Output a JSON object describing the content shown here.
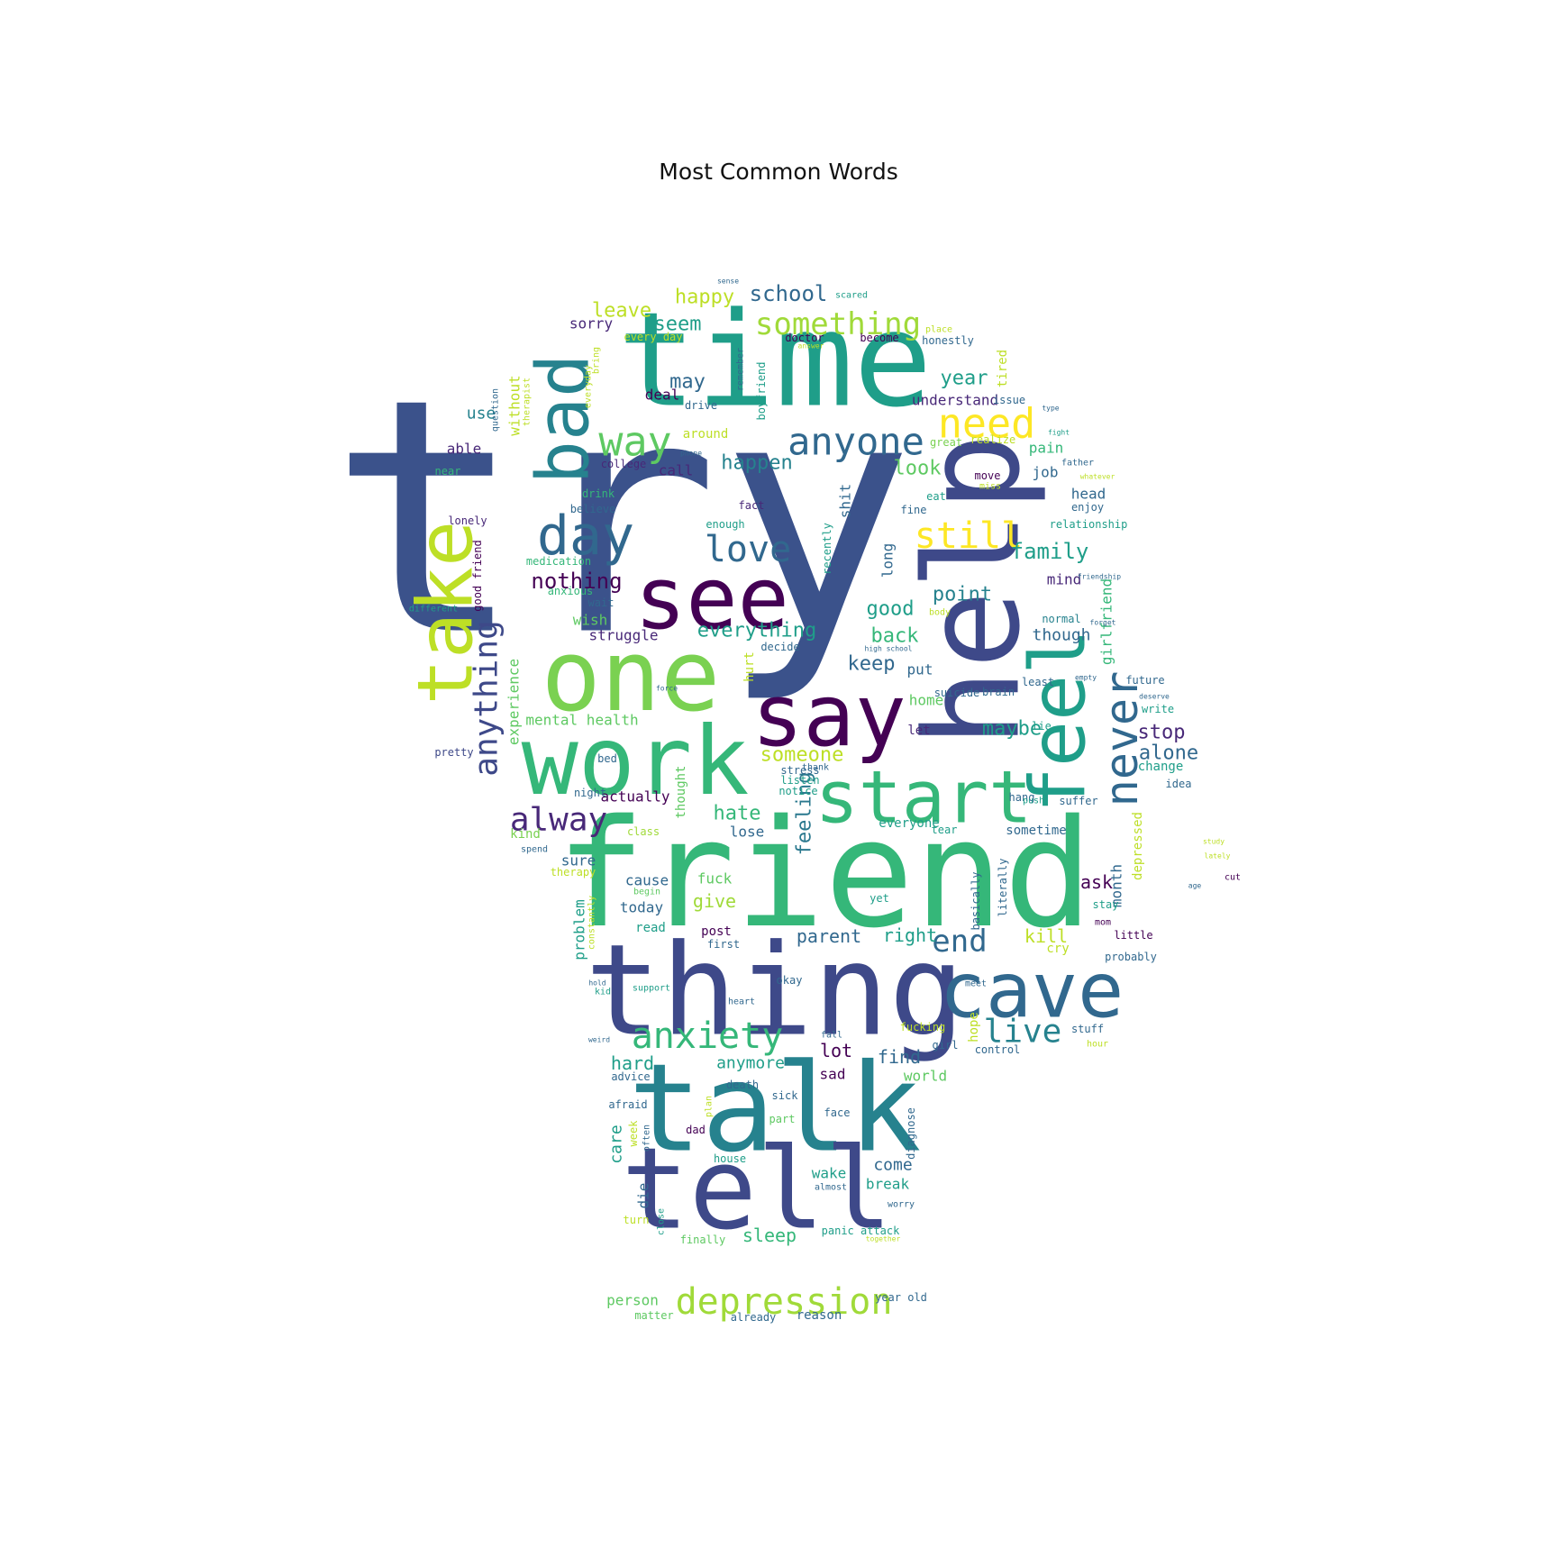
{
  "title": "Most Common Words",
  "palette": {
    "d1": "#3b528b",
    "d2": "#21918c",
    "d3": "#2a788e",
    "d4": "#440154",
    "d5": "#482878",
    "d6": "#5ec962",
    "d7": "#35b779",
    "d8": "#7ad151",
    "d9": "#bddf26",
    "d10": "#fde725",
    "d11": "#31688e",
    "d12": "#26828e",
    "d13": "#1f9e89",
    "d14": "#3e4989",
    "d15": "#a0da39",
    "d16": "#6ece58"
  },
  "words": [
    {
      "text": "try",
      "color": "d1"
    },
    {
      "text": "time",
      "color": "d13"
    },
    {
      "text": "friend",
      "color": "d7"
    },
    {
      "text": "help",
      "color": "d14"
    },
    {
      "text": "thing",
      "color": "d14"
    },
    {
      "text": "talk",
      "color": "d12"
    },
    {
      "text": "tell",
      "color": "d14"
    },
    {
      "text": "one",
      "color": "d8"
    },
    {
      "text": "work",
      "color": "d7"
    },
    {
      "text": "feel",
      "color": "d13"
    },
    {
      "text": "say",
      "color": "d4"
    },
    {
      "text": "see",
      "color": "d4"
    },
    {
      "text": "bad",
      "color": "d12"
    },
    {
      "text": "take",
      "color": "d9"
    },
    {
      "text": "start",
      "color": "d7"
    },
    {
      "text": "cave",
      "color": "d11"
    },
    {
      "text": "never",
      "color": "d11"
    },
    {
      "text": "day",
      "color": "d11"
    },
    {
      "text": "anyone",
      "color": "d11"
    },
    {
      "text": "way",
      "color": "d6"
    },
    {
      "text": "need",
      "color": "d10"
    },
    {
      "text": "anxiety",
      "color": "d7"
    },
    {
      "text": "depression",
      "color": "d15"
    },
    {
      "text": "anything",
      "color": "d14"
    },
    {
      "text": "love",
      "color": "d11"
    },
    {
      "text": "still",
      "color": "d10"
    },
    {
      "text": "alway",
      "color": "d5"
    },
    {
      "text": "something",
      "color": "d15"
    },
    {
      "text": "live",
      "color": "d12"
    },
    {
      "text": "end",
      "color": "d11"
    },
    {
      "text": "nothing",
      "color": "d4"
    },
    {
      "text": "school",
      "color": "d11"
    },
    {
      "text": "family",
      "color": "d13"
    },
    {
      "text": "happen",
      "color": "d12"
    },
    {
      "text": "everything",
      "color": "d13"
    },
    {
      "text": "someone",
      "color": "d9"
    },
    {
      "text": "hate",
      "color": "d7"
    },
    {
      "text": "feeling",
      "color": "d3"
    },
    {
      "text": "good",
      "color": "d13"
    },
    {
      "text": "point",
      "color": "d12"
    },
    {
      "text": "back",
      "color": "d7"
    },
    {
      "text": "keep",
      "color": "d11"
    },
    {
      "text": "maybe",
      "color": "d13"
    },
    {
      "text": "stop",
      "color": "d5"
    },
    {
      "text": "alone",
      "color": "d11"
    },
    {
      "text": "look",
      "color": "d6"
    },
    {
      "text": "leave",
      "color": "d9"
    },
    {
      "text": "happy",
      "color": "d9"
    },
    {
      "text": "seem",
      "color": "d13"
    },
    {
      "text": "year",
      "color": "d13"
    },
    {
      "text": "may",
      "color": "d11"
    },
    {
      "text": "use",
      "color": "d12"
    },
    {
      "text": "sorry",
      "color": "d5"
    },
    {
      "text": "deal",
      "color": "d4"
    },
    {
      "text": "understand",
      "color": "d5"
    },
    {
      "text": "around",
      "color": "d9"
    },
    {
      "text": "without",
      "color": "d9"
    },
    {
      "text": "able",
      "color": "d5"
    },
    {
      "text": "call",
      "color": "d5"
    },
    {
      "text": "pain",
      "color": "d7"
    },
    {
      "text": "job",
      "color": "d11"
    },
    {
      "text": "head",
      "color": "d11"
    },
    {
      "text": "mind",
      "color": "d5"
    },
    {
      "text": "though",
      "color": "d11"
    },
    {
      "text": "girlfriend",
      "color": "d7"
    },
    {
      "text": "long",
      "color": "d11"
    },
    {
      "text": "shit",
      "color": "d11"
    },
    {
      "text": "put",
      "color": "d11"
    },
    {
      "text": "home",
      "color": "d6"
    },
    {
      "text": "let",
      "color": "d5"
    },
    {
      "text": "struggle",
      "color": "d5"
    },
    {
      "text": "wish",
      "color": "d6"
    },
    {
      "text": "experience",
      "color": "d6"
    },
    {
      "text": "mental health",
      "color": "d6"
    },
    {
      "text": "parent",
      "color": "d11"
    },
    {
      "text": "right",
      "color": "d13"
    },
    {
      "text": "kill",
      "color": "d9"
    },
    {
      "text": "ask",
      "color": "d4"
    },
    {
      "text": "month",
      "color": "d11"
    },
    {
      "text": "depressed",
      "color": "d9"
    },
    {
      "text": "give",
      "color": "d15"
    },
    {
      "text": "fuck",
      "color": "d6"
    },
    {
      "text": "cause",
      "color": "d11"
    },
    {
      "text": "today",
      "color": "d11"
    },
    {
      "text": "sure",
      "color": "d11"
    },
    {
      "text": "problem",
      "color": "d13"
    },
    {
      "text": "thought",
      "color": "d6"
    },
    {
      "text": "actually",
      "color": "d4"
    },
    {
      "text": "lose",
      "color": "d11"
    },
    {
      "text": "everyone",
      "color": "d13"
    },
    {
      "text": "sometime",
      "color": "d11"
    },
    {
      "text": "change",
      "color": "d13"
    },
    {
      "text": "post",
      "color": "d4"
    },
    {
      "text": "read",
      "color": "d13"
    },
    {
      "text": "cry",
      "color": "d9"
    },
    {
      "text": "find",
      "color": "d11"
    },
    {
      "text": "lot",
      "color": "d4"
    },
    {
      "text": "hard",
      "color": "d13"
    },
    {
      "text": "anymore",
      "color": "d13"
    },
    {
      "text": "world",
      "color": "d6"
    },
    {
      "text": "sad",
      "color": "d4"
    },
    {
      "text": "care",
      "color": "d13"
    },
    {
      "text": "come",
      "color": "d11"
    },
    {
      "text": "break",
      "color": "d13"
    },
    {
      "text": "wake",
      "color": "d13"
    },
    {
      "text": "die",
      "color": "d11"
    },
    {
      "text": "sleep",
      "color": "d7"
    },
    {
      "text": "person",
      "color": "d6"
    },
    {
      "text": "matter",
      "color": "d6"
    },
    {
      "text": "already",
      "color": "d11"
    },
    {
      "text": "reason",
      "color": "d11"
    },
    {
      "text": "advice",
      "color": "d11"
    },
    {
      "text": "death",
      "color": "d11"
    },
    {
      "text": "afraid",
      "color": "d11"
    },
    {
      "text": "kind",
      "color": "d8"
    },
    {
      "text": "pretty",
      "color": "d14"
    },
    {
      "text": "lonely",
      "color": "d5"
    },
    {
      "text": "tired",
      "color": "d9"
    },
    {
      "text": "idea",
      "color": "d11"
    },
    {
      "text": "wait",
      "color": "d11"
    },
    {
      "text": "hurt",
      "color": "d9"
    },
    {
      "text": "night",
      "color": "d11"
    },
    {
      "text": "therapy",
      "color": "d9"
    },
    {
      "text": "medication",
      "color": "d7"
    },
    {
      "text": "anxious",
      "color": "d7"
    },
    {
      "text": "college",
      "color": "d5"
    },
    {
      "text": "drink",
      "color": "d7"
    },
    {
      "text": "believe",
      "color": "d11"
    },
    {
      "text": "fact",
      "color": "d5"
    },
    {
      "text": "enough",
      "color": "d13"
    },
    {
      "text": "recently",
      "color": "d13"
    },
    {
      "text": "panic attack",
      "color": "d13"
    },
    {
      "text": "finally",
      "color": "d6"
    },
    {
      "text": "suicide",
      "color": "d11"
    },
    {
      "text": "brain",
      "color": "d11"
    },
    {
      "text": "least",
      "color": "d11"
    },
    {
      "text": "normal",
      "color": "d12"
    },
    {
      "text": "future",
      "color": "d11"
    },
    {
      "text": "write",
      "color": "d13"
    },
    {
      "text": "suffer",
      "color": "d11"
    },
    {
      "text": "hope",
      "color": "d9"
    },
    {
      "text": "fucking",
      "color": "d9"
    },
    {
      "text": "stuff",
      "color": "d11"
    },
    {
      "text": "little",
      "color": "d4"
    },
    {
      "text": "probably",
      "color": "d11"
    },
    {
      "text": "stay",
      "color": "d13"
    },
    {
      "text": "girl",
      "color": "d11"
    },
    {
      "text": "control",
      "color": "d11"
    },
    {
      "text": "literally",
      "color": "d11"
    },
    {
      "text": "basically",
      "color": "d11"
    },
    {
      "text": "boyfriend",
      "color": "d13"
    },
    {
      "text": "remember",
      "color": "d11"
    },
    {
      "text": "doctor",
      "color": "d4"
    },
    {
      "text": "become",
      "color": "d4"
    },
    {
      "text": "honestly",
      "color": "d11"
    },
    {
      "text": "place",
      "color": "d9"
    },
    {
      "text": "scared",
      "color": "d13"
    },
    {
      "text": "every day",
      "color": "d9"
    },
    {
      "text": "everyday",
      "color": "d9"
    },
    {
      "text": "drive",
      "color": "d11"
    },
    {
      "text": "issue",
      "color": "d11"
    },
    {
      "text": "realize",
      "color": "d9"
    },
    {
      "text": "great",
      "color": "d8"
    },
    {
      "text": "relationship",
      "color": "d13"
    },
    {
      "text": "enjoy",
      "color": "d11"
    },
    {
      "text": "father",
      "color": "d11"
    },
    {
      "text": "fine",
      "color": "d11"
    },
    {
      "text": "eat",
      "color": "d13"
    },
    {
      "text": "move",
      "color": "d4"
    },
    {
      "text": "miss",
      "color": "d9"
    },
    {
      "text": "question",
      "color": "d11"
    },
    {
      "text": "therapist",
      "color": "d9"
    },
    {
      "text": "bring",
      "color": "d9"
    },
    {
      "text": "near",
      "color": "d7"
    },
    {
      "text": "good friend",
      "color": "d4"
    },
    {
      "text": "different",
      "color": "d13"
    },
    {
      "text": "bed",
      "color": "d11"
    },
    {
      "text": "stress",
      "color": "d11"
    },
    {
      "text": "listen",
      "color": "d13"
    },
    {
      "text": "thank",
      "color": "d11"
    },
    {
      "text": "notice",
      "color": "d13"
    },
    {
      "text": "hang",
      "color": "d11"
    },
    {
      "text": "push",
      "color": "d13"
    },
    {
      "text": "tear",
      "color": "d13"
    },
    {
      "text": "spend",
      "color": "d11"
    },
    {
      "text": "class",
      "color": "d15"
    },
    {
      "text": "begin",
      "color": "d6"
    },
    {
      "text": "constantly",
      "color": "d9"
    },
    {
      "text": "first",
      "color": "d11"
    },
    {
      "text": "okay",
      "color": "d11"
    },
    {
      "text": "fall",
      "color": "d11"
    },
    {
      "text": "kid",
      "color": "d13"
    },
    {
      "text": "support",
      "color": "d13"
    },
    {
      "text": "heart",
      "color": "d11"
    },
    {
      "text": "sick",
      "color": "d11"
    },
    {
      "text": "part",
      "color": "d6"
    },
    {
      "text": "face",
      "color": "d11"
    },
    {
      "text": "dad",
      "color": "d4"
    },
    {
      "text": "week",
      "color": "d9"
    },
    {
      "text": "often",
      "color": "d11"
    },
    {
      "text": "house",
      "color": "d13"
    },
    {
      "text": "diagnose",
      "color": "d11"
    },
    {
      "text": "almost",
      "color": "d11"
    },
    {
      "text": "worry",
      "color": "d11"
    },
    {
      "text": "turn",
      "color": "d9"
    },
    {
      "text": "close",
      "color": "d13"
    },
    {
      "text": "year old",
      "color": "d11"
    },
    {
      "text": "study",
      "color": "d9"
    },
    {
      "text": "lately",
      "color": "d9"
    },
    {
      "text": "cut",
      "color": "d4"
    },
    {
      "text": "age",
      "color": "d11"
    },
    {
      "text": "mom",
      "color": "d4"
    },
    {
      "text": "hour",
      "color": "d9"
    },
    {
      "text": "meet",
      "color": "d11"
    },
    {
      "text": "deserve",
      "color": "d11"
    },
    {
      "text": "plan",
      "color": "d9"
    },
    {
      "text": "lie",
      "color": "d13"
    },
    {
      "text": "yet",
      "color": "d13"
    },
    {
      "text": "hold",
      "color": "d11"
    },
    {
      "text": "weird",
      "color": "d11"
    },
    {
      "text": "phone",
      "color": "d11"
    },
    {
      "text": "high school",
      "color": "d11"
    },
    {
      "text": "sense",
      "color": "d11"
    },
    {
      "text": "decide",
      "color": "d11"
    },
    {
      "text": "answer",
      "color": "d9"
    },
    {
      "text": "type",
      "color": "d11"
    },
    {
      "text": "fight",
      "color": "d13"
    },
    {
      "text": "whatever",
      "color": "d9"
    },
    {
      "text": "friendship",
      "color": "d11"
    },
    {
      "text": "force",
      "color": "d11"
    },
    {
      "text": "body",
      "color": "d9"
    },
    {
      "text": "forget",
      "color": "d11"
    },
    {
      "text": "empty",
      "color": "d11"
    },
    {
      "text": "together",
      "color": "d9"
    }
  ]
}
